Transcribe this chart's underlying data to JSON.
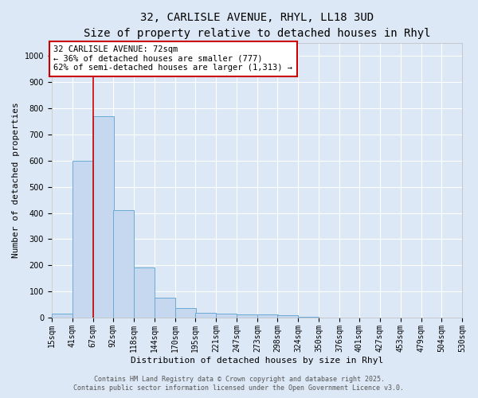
{
  "title_line1": "32, CARLISLE AVENUE, RHYL, LL18 3UD",
  "title_line2": "Size of property relative to detached houses in Rhyl",
  "xlabel": "Distribution of detached houses by size in Rhyl",
  "ylabel": "Number of detached properties",
  "bin_labels": [
    "15sqm",
    "41sqm",
    "67sqm",
    "92sqm",
    "118sqm",
    "144sqm",
    "170sqm",
    "195sqm",
    "221sqm",
    "247sqm",
    "273sqm",
    "298sqm",
    "324sqm",
    "350sqm",
    "376sqm",
    "401sqm",
    "427sqm",
    "453sqm",
    "479sqm",
    "504sqm",
    "530sqm"
  ],
  "bin_edges": [
    15,
    41,
    67,
    92,
    118,
    144,
    170,
    195,
    221,
    247,
    273,
    298,
    324,
    350,
    376,
    401,
    427,
    453,
    479,
    504,
    530
  ],
  "bar_heights": [
    15,
    600,
    770,
    410,
    192,
    75,
    38,
    18,
    15,
    12,
    12,
    8,
    2,
    1,
    1,
    0,
    0,
    0,
    0,
    0
  ],
  "bar_color": "#c5d8f0",
  "bar_edge_color": "#6aaad4",
  "property_line_x": 67,
  "property_line_color": "#cc0000",
  "annotation_text": "32 CARLISLE AVENUE: 72sqm\n← 36% of detached houses are smaller (777)\n62% of semi-detached houses are larger (1,313) →",
  "annotation_box_color": "#ffffff",
  "annotation_box_edge_color": "#cc0000",
  "ylim": [
    0,
    1050
  ],
  "yticks": [
    0,
    100,
    200,
    300,
    400,
    500,
    600,
    700,
    800,
    900,
    1000
  ],
  "background_color": "#dce8f5",
  "grid_color": "#ffffff",
  "footer_line1": "Contains HM Land Registry data © Crown copyright and database right 2025.",
  "footer_line2": "Contains public sector information licensed under the Open Government Licence v3.0.",
  "title_fontsize": 10,
  "subtitle_fontsize": 9,
  "axis_label_fontsize": 8,
  "tick_fontsize": 7,
  "annotation_fontsize": 7.5,
  "footer_fontsize": 6
}
